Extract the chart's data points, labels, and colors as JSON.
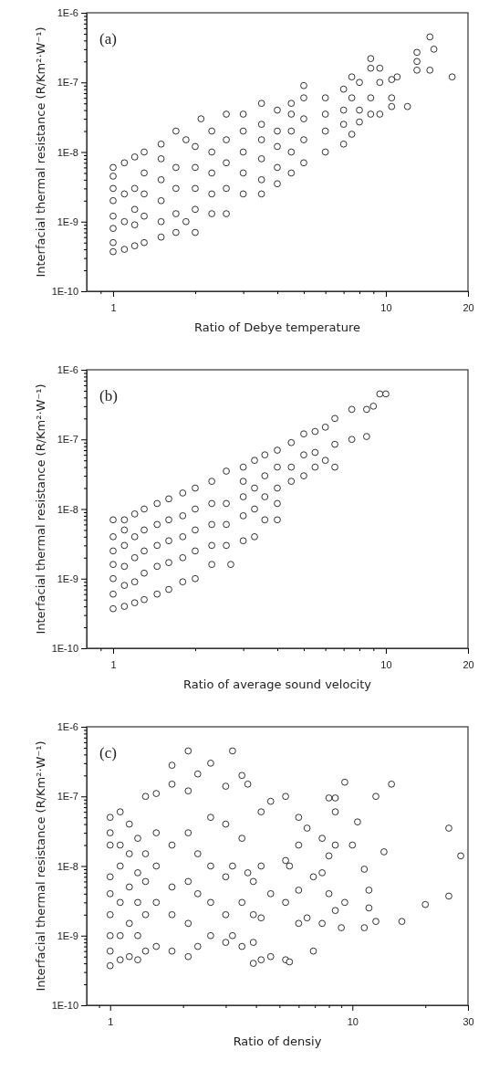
{
  "chart_data": [
    {
      "type": "scatter",
      "log": "xy",
      "marker": "circle",
      "xlabel": "Ratio of Debye temperature",
      "ylabel": "Interfacial thermal resistance (R/Km²·W⁻¹)",
      "annotations": [
        "(a)"
      ],
      "xlim": [
        0.8,
        20
      ],
      "xticks": [
        {
          "value": 0.9,
          "label": null
        },
        1,
        {
          "value": 2,
          "label": null
        },
        {
          "value": 3,
          "label": null
        },
        {
          "value": 4,
          "label": null
        },
        {
          "value": 5,
          "label": null
        },
        {
          "value": 6,
          "label": null
        },
        {
          "value": 7,
          "label": null
        },
        {
          "value": 8,
          "label": null
        },
        {
          "value": 9,
          "label": null
        },
        10,
        20
      ],
      "ylim": [
        1e-10,
        1e-06
      ],
      "yticks": [
        {
          "value": 1e-10,
          "label": "1E-10"
        },
        {
          "value": 2e-10,
          "label": null
        },
        {
          "value": 3e-10,
          "label": null
        },
        {
          "value": 4e-10,
          "label": null
        },
        {
          "value": 5e-10,
          "label": null
        },
        {
          "value": 6e-10,
          "label": null
        },
        {
          "value": 7e-10,
          "label": null
        },
        {
          "value": 8e-10,
          "label": null
        },
        {
          "value": 9e-10,
          "label": null
        },
        {
          "value": 1e-09,
          "label": "1E-9"
        },
        {
          "value": 2e-09,
          "label": null
        },
        {
          "value": 3e-09,
          "label": null
        },
        {
          "value": 4e-09,
          "label": null
        },
        {
          "value": 5e-09,
          "label": null
        },
        {
          "value": 6e-09,
          "label": null
        },
        {
          "value": 7e-09,
          "label": null
        },
        {
          "value": 8e-09,
          "label": null
        },
        {
          "value": 9e-09,
          "label": null
        },
        {
          "value": 1e-08,
          "label": "1E-8"
        },
        {
          "value": 2e-08,
          "label": null
        },
        {
          "value": 3e-08,
          "label": null
        },
        {
          "value": 4e-08,
          "label": null
        },
        {
          "value": 5e-08,
          "label": null
        },
        {
          "value": 6e-08,
          "label": null
        },
        {
          "value": 7e-08,
          "label": null
        },
        {
          "value": 8e-08,
          "label": null
        },
        {
          "value": 9e-08,
          "label": null
        },
        {
          "value": 1e-07,
          "label": "1E-7"
        },
        {
          "value": 2e-07,
          "label": null
        },
        {
          "value": 3e-07,
          "label": null
        },
        {
          "value": 4e-07,
          "label": null
        },
        {
          "value": 5e-07,
          "label": null
        },
        {
          "value": 6e-07,
          "label": null
        },
        {
          "value": 7e-07,
          "label": null
        },
        {
          "value": 8e-07,
          "label": null
        },
        {
          "value": 9e-07,
          "label": null
        },
        {
          "value": 1e-06,
          "label": "1E-6"
        }
      ],
      "series": [
        {
          "color": "#000000",
          "x": [
            1,
            1,
            1,
            1,
            1,
            1,
            1,
            1,
            1.1,
            1.1,
            1.1,
            1.1,
            1.2,
            1.2,
            1.2,
            1.2,
            1.2,
            1.3,
            1.3,
            1.3,
            1.3,
            1.3,
            1.5,
            1.5,
            1.5,
            1.5,
            1.5,
            1.5,
            1.7,
            1.7,
            1.7,
            1.7,
            1.7,
            1.85,
            1.85,
            2,
            2,
            2,
            2,
            2,
            2.1,
            2.3,
            2.3,
            2.3,
            2.3,
            2.3,
            2.6,
            2.6,
            2.6,
            2.6,
            2.6,
            3,
            3,
            3,
            3,
            3,
            3.5,
            3.5,
            3.5,
            3.5,
            3.5,
            3.5,
            4,
            4,
            4,
            4,
            4,
            4.5,
            4.5,
            4.5,
            4.5,
            4.5,
            5,
            5,
            5,
            5,
            5,
            6,
            6,
            6,
            6,
            7,
            7,
            7,
            7,
            7.5,
            7.5,
            7.5,
            8,
            8,
            8,
            8.8,
            8.8,
            8.8,
            8.8,
            9.5,
            9.5,
            9.5,
            10.5,
            10.5,
            10.5,
            11,
            12,
            13,
            13,
            13,
            14.5,
            14.5,
            15,
            17.5
          ],
          "values": [
            3.7e-10,
            5e-10,
            8e-10,
            1.2e-09,
            2e-09,
            3e-09,
            4.5e-09,
            6e-09,
            4e-10,
            1e-09,
            2.5e-09,
            7e-09,
            4.5e-10,
            9e-10,
            1.5e-09,
            3e-09,
            8.5e-09,
            5e-10,
            1.2e-09,
            2.5e-09,
            5e-09,
            1e-08,
            6e-10,
            1e-09,
            2e-09,
            4e-09,
            8e-09,
            1.3e-08,
            7e-10,
            1.3e-09,
            3e-09,
            6e-09,
            2e-08,
            1.5e-08,
            1e-09,
            7e-10,
            1.5e-09,
            3e-09,
            6e-09,
            1.2e-08,
            3e-08,
            1.3e-09,
            2.5e-09,
            5e-09,
            1e-08,
            2e-08,
            1.3e-09,
            3e-09,
            7e-09,
            1.5e-08,
            3.5e-08,
            2.5e-09,
            5e-09,
            1e-08,
            2e-08,
            3.5e-08,
            2.5e-09,
            4e-09,
            8e-09,
            1.5e-08,
            2.5e-08,
            5e-08,
            3.5e-09,
            6e-09,
            1.2e-08,
            2e-08,
            4e-08,
            5e-09,
            1e-08,
            2e-08,
            3.5e-08,
            5e-08,
            7e-09,
            1.5e-08,
            3e-08,
            6e-08,
            9e-08,
            1e-08,
            2e-08,
            3.5e-08,
            6e-08,
            1.3e-08,
            2.5e-08,
            4e-08,
            8e-08,
            1.8e-08,
            6e-08,
            1.2e-07,
            2.7e-08,
            4e-08,
            1e-07,
            2.2e-07,
            1.6e-07,
            6e-08,
            3.5e-08,
            1.6e-07,
            1e-07,
            3.5e-08,
            4.5e-08,
            6e-08,
            1.1e-07,
            1.2e-07,
            4.5e-08,
            1.5e-07,
            2e-07,
            2.7e-07,
            4.5e-07,
            1.5e-07,
            3e-07,
            1.2e-07
          ]
        }
      ]
    },
    {
      "type": "scatter",
      "log": "xy",
      "marker": "circle",
      "xlabel": "Ratio of average sound velocity",
      "ylabel": "Interfacial thermal resistance (R/Km²·W⁻¹)",
      "annotations": [
        "(b)"
      ],
      "xlim": [
        0.8,
        20
      ],
      "xticks": [
        {
          "value": 0.9,
          "label": null
        },
        1,
        {
          "value": 2,
          "label": null
        },
        {
          "value": 3,
          "label": null
        },
        {
          "value": 4,
          "label": null
        },
        {
          "value": 5,
          "label": null
        },
        {
          "value": 6,
          "label": null
        },
        {
          "value": 7,
          "label": null
        },
        {
          "value": 8,
          "label": null
        },
        {
          "value": 9,
          "label": null
        },
        10,
        20
      ],
      "ylim": [
        1e-10,
        1e-06
      ],
      "yticks": [
        {
          "value": 1e-10,
          "label": "1E-10"
        },
        {
          "value": 2e-10,
          "label": null
        },
        {
          "value": 3e-10,
          "label": null
        },
        {
          "value": 4e-10,
          "label": null
        },
        {
          "value": 5e-10,
          "label": null
        },
        {
          "value": 6e-10,
          "label": null
        },
        {
          "value": 7e-10,
          "label": null
        },
        {
          "value": 8e-10,
          "label": null
        },
        {
          "value": 9e-10,
          "label": null
        },
        {
          "value": 1e-09,
          "label": "1E-9"
        },
        {
          "value": 2e-09,
          "label": null
        },
        {
          "value": 3e-09,
          "label": null
        },
        {
          "value": 4e-09,
          "label": null
        },
        {
          "value": 5e-09,
          "label": null
        },
        {
          "value": 6e-09,
          "label": null
        },
        {
          "value": 7e-09,
          "label": null
        },
        {
          "value": 8e-09,
          "label": null
        },
        {
          "value": 9e-09,
          "label": null
        },
        {
          "value": 1e-08,
          "label": "1E-8"
        },
        {
          "value": 2e-08,
          "label": null
        },
        {
          "value": 3e-08,
          "label": null
        },
        {
          "value": 4e-08,
          "label": null
        },
        {
          "value": 5e-08,
          "label": null
        },
        {
          "value": 6e-08,
          "label": null
        },
        {
          "value": 7e-08,
          "label": null
        },
        {
          "value": 8e-08,
          "label": null
        },
        {
          "value": 9e-08,
          "label": null
        },
        {
          "value": 1e-07,
          "label": "1E-7"
        },
        {
          "value": 2e-07,
          "label": null
        },
        {
          "value": 3e-07,
          "label": null
        },
        {
          "value": 4e-07,
          "label": null
        },
        {
          "value": 5e-07,
          "label": null
        },
        {
          "value": 6e-07,
          "label": null
        },
        {
          "value": 7e-07,
          "label": null
        },
        {
          "value": 8e-07,
          "label": null
        },
        {
          "value": 9e-07,
          "label": null
        },
        {
          "value": 1e-06,
          "label": "1E-6"
        }
      ],
      "series": [
        {
          "color": "#000000",
          "x": [
            1,
            1,
            1,
            1,
            1,
            1,
            1,
            1.1,
            1.1,
            1.1,
            1.1,
            1.1,
            1.1,
            1.2,
            1.2,
            1.2,
            1.2,
            1.2,
            1.3,
            1.3,
            1.3,
            1.3,
            1.3,
            1.45,
            1.45,
            1.45,
            1.45,
            1.45,
            1.6,
            1.6,
            1.6,
            1.6,
            1.6,
            1.8,
            1.8,
            1.8,
            1.8,
            1.8,
            2,
            2,
            2,
            2,
            2,
            2.3,
            2.3,
            2.3,
            2.3,
            2.3,
            2.7,
            2.6,
            2.6,
            2.6,
            2.6,
            3,
            3,
            3,
            3,
            3,
            3.3,
            3.3,
            3.3,
            3.3,
            3.6,
            3.6,
            3.6,
            3.6,
            4,
            4,
            4,
            4,
            4,
            4.5,
            4.5,
            4.5,
            5,
            5,
            5,
            5.5,
            5.5,
            5.5,
            6,
            6,
            6.5,
            6.5,
            6.5,
            7.5,
            7.5,
            8.5,
            8.5,
            9,
            9.5,
            10
          ],
          "values": [
            3.7e-10,
            6e-10,
            1e-09,
            1.6e-09,
            2.5e-09,
            4e-09,
            7e-09,
            4e-10,
            8e-10,
            1.5e-09,
            3e-09,
            5e-09,
            7e-09,
            4.5e-10,
            9e-10,
            2e-09,
            4e-09,
            8.5e-09,
            5e-10,
            1.2e-09,
            2.5e-09,
            5e-09,
            1e-08,
            6e-10,
            1.5e-09,
            3e-09,
            6e-09,
            1.2e-08,
            7e-10,
            1.7e-09,
            3.5e-09,
            7e-09,
            1.4e-08,
            9e-10,
            2e-09,
            4e-09,
            8e-09,
            1.7e-08,
            1e-09,
            2.5e-09,
            5e-09,
            1e-08,
            2e-08,
            1.6e-09,
            3e-09,
            6e-09,
            1.2e-08,
            2.5e-08,
            1.6e-09,
            3e-09,
            6e-09,
            1.2e-08,
            3.5e-08,
            3.5e-09,
            8e-09,
            1.5e-08,
            2.5e-08,
            4e-08,
            4e-09,
            1e-08,
            2e-08,
            5e-08,
            7e-09,
            1.5e-08,
            3e-08,
            6e-08,
            7e-09,
            1.2e-08,
            2e-08,
            4e-08,
            7e-08,
            2.5e-08,
            4e-08,
            9e-08,
            3e-08,
            6e-08,
            1.2e-07,
            4e-08,
            6.5e-08,
            1.3e-07,
            5e-08,
            1.5e-07,
            4e-08,
            8.5e-08,
            2e-07,
            1e-07,
            2.7e-07,
            2.7e-07,
            1.1e-07,
            3e-07,
            4.5e-07,
            4.5e-07
          ]
        }
      ]
    },
    {
      "type": "scatter",
      "log": "xy",
      "marker": "circle",
      "xlabel": "Ratio of densiy",
      "ylabel": "Interfacial thermal resistance (R/Km²·W⁻¹)",
      "annotations": [
        "(c)"
      ],
      "xlim": [
        0.8,
        30
      ],
      "xticks": [
        {
          "value": 0.9,
          "label": null
        },
        1,
        {
          "value": 2,
          "label": null
        },
        {
          "value": 3,
          "label": null
        },
        {
          "value": 4,
          "label": null
        },
        {
          "value": 5,
          "label": null
        },
        {
          "value": 6,
          "label": null
        },
        {
          "value": 7,
          "label": null
        },
        {
          "value": 8,
          "label": null
        },
        {
          "value": 9,
          "label": null
        },
        10,
        {
          "value": 20,
          "label": null
        },
        30
      ],
      "ylim": [
        1e-10,
        1e-06
      ],
      "yticks": [
        {
          "value": 1e-10,
          "label": "1E-10"
        },
        {
          "value": 2e-10,
          "label": null
        },
        {
          "value": 3e-10,
          "label": null
        },
        {
          "value": 4e-10,
          "label": null
        },
        {
          "value": 5e-10,
          "label": null
        },
        {
          "value": 6e-10,
          "label": null
        },
        {
          "value": 7e-10,
          "label": null
        },
        {
          "value": 8e-10,
          "label": null
        },
        {
          "value": 9e-10,
          "label": null
        },
        {
          "value": 1e-09,
          "label": "1E-9"
        },
        {
          "value": 2e-09,
          "label": null
        },
        {
          "value": 3e-09,
          "label": null
        },
        {
          "value": 4e-09,
          "label": null
        },
        {
          "value": 5e-09,
          "label": null
        },
        {
          "value": 6e-09,
          "label": null
        },
        {
          "value": 7e-09,
          "label": null
        },
        {
          "value": 8e-09,
          "label": null
        },
        {
          "value": 9e-09,
          "label": null
        },
        {
          "value": 1e-08,
          "label": "1E-8"
        },
        {
          "value": 2e-08,
          "label": null
        },
        {
          "value": 3e-08,
          "label": null
        },
        {
          "value": 4e-08,
          "label": null
        },
        {
          "value": 5e-08,
          "label": null
        },
        {
          "value": 6e-08,
          "label": null
        },
        {
          "value": 7e-08,
          "label": null
        },
        {
          "value": 8e-08,
          "label": null
        },
        {
          "value": 9e-08,
          "label": null
        },
        {
          "value": 1e-07,
          "label": "1E-7"
        },
        {
          "value": 2e-07,
          "label": null
        },
        {
          "value": 3e-07,
          "label": null
        },
        {
          "value": 4e-07,
          "label": null
        },
        {
          "value": 5e-07,
          "label": null
        },
        {
          "value": 6e-07,
          "label": null
        },
        {
          "value": 7e-07,
          "label": null
        },
        {
          "value": 8e-07,
          "label": null
        },
        {
          "value": 9e-07,
          "label": null
        },
        {
          "value": 1e-06,
          "label": "1E-6"
        }
      ],
      "series": [
        {
          "color": "#000000",
          "x": [
            1,
            1,
            1,
            1,
            1,
            1,
            1,
            1,
            1,
            1.1,
            1.1,
            1.1,
            1.1,
            1.1,
            1.1,
            1.2,
            1.2,
            1.2,
            1.2,
            1.2,
            1.3,
            1.3,
            1.3,
            1.3,
            1.3,
            1.4,
            1.4,
            1.4,
            1.4,
            1.4,
            1.55,
            1.55,
            1.55,
            1.55,
            1.55,
            1.8,
            1.8,
            1.8,
            1.8,
            1.8,
            1.8,
            2.1,
            2.1,
            2.1,
            2.1,
            2.1,
            2.1,
            2.3,
            2.3,
            2.3,
            2.3,
            2.6,
            2.6,
            2.6,
            2.6,
            2.6,
            3,
            3,
            3,
            3,
            3,
            3.2,
            3.2,
            3.2,
            3.5,
            3.5,
            3.5,
            3.5,
            3.7,
            3.7,
            3.9,
            3.9,
            3.9,
            3.9,
            4.2,
            4.2,
            4.2,
            4.2,
            4.6,
            4.6,
            4.6,
            5.3,
            5.3,
            5.3,
            5.3,
            5.5,
            5.5,
            6,
            6,
            6,
            6,
            6.5,
            6.5,
            6.9,
            6.9,
            7.5,
            7.5,
            7.5,
            8,
            8,
            8,
            8.5,
            8.5,
            8.5,
            8.5,
            9,
            9.3,
            9.3,
            10,
            10.5,
            11.2,
            11.2,
            11.7,
            11.7,
            12.5,
            12.5,
            13.5,
            14.5,
            16,
            20,
            25,
            25,
            28
          ],
          "values": [
            3.7e-10,
            6e-10,
            1e-09,
            2e-09,
            4e-09,
            7e-09,
            2e-08,
            3e-08,
            5e-08,
            4.5e-10,
            1e-09,
            3e-09,
            1e-08,
            2e-08,
            6e-08,
            5e-10,
            1.5e-09,
            5e-09,
            1.5e-08,
            4e-08,
            4.5e-10,
            1e-09,
            3e-09,
            8e-09,
            2.5e-08,
            6e-10,
            2e-09,
            6e-09,
            1.5e-08,
            1e-07,
            1.1e-07,
            7e-10,
            3e-09,
            1e-08,
            3e-08,
            6e-10,
            2e-09,
            5e-09,
            2e-08,
            1.5e-07,
            2.8e-07,
            4.5e-07,
            5e-10,
            1.5e-09,
            6e-09,
            3e-08,
            1.2e-07,
            2.1e-07,
            7e-10,
            4e-09,
            1.5e-08,
            3e-07,
            1e-09,
            3e-09,
            1e-08,
            5e-08,
            1.4e-07,
            8e-10,
            2e-09,
            7e-09,
            4e-08,
            4.5e-07,
            1e-09,
            1e-08,
            2e-07,
            7e-10,
            3e-09,
            2.5e-08,
            1.5e-07,
            8e-09,
            4e-10,
            8e-10,
            2e-09,
            6e-09,
            6e-08,
            1e-08,
            4.5e-10,
            1.8e-09,
            5e-10,
            8.5e-08,
            4e-09,
            1e-07,
            4.5e-10,
            3e-09,
            1.2e-08,
            4.2e-10,
            1e-08,
            5e-08,
            1.5e-09,
            4.5e-09,
            2e-08,
            3.5e-08,
            1.8e-09,
            6e-10,
            7e-09,
            2.5e-08,
            1.5e-09,
            8e-09,
            9.5e-08,
            4e-09,
            1.4e-08,
            9.5e-08,
            6e-08,
            2e-08,
            2.3e-09,
            1.3e-09,
            1.6e-07,
            3e-09,
            2e-08,
            4.3e-08,
            9e-09,
            1.3e-09,
            2.5e-09,
            4.5e-09,
            1e-07,
            1.6e-09,
            1.6e-08,
            1.5e-07,
            1.6e-09,
            2.8e-09,
            3.5e-08,
            3.7e-09,
            1.4e-08
          ]
        }
      ]
    }
  ]
}
